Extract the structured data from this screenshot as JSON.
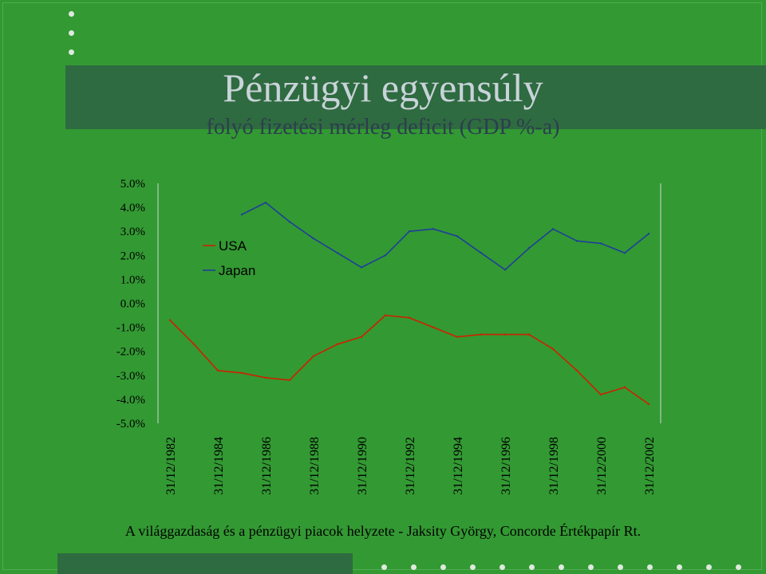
{
  "slide": {
    "title": "Pénzügyi egyensúly",
    "subtitle": "folyó fizetési mérleg deficit (GDP %-a)",
    "footer": "A világgazdaság és a pénzügyi piacok helyzete - Jaksity György, Concorde Értékpapír Rt."
  },
  "colors": {
    "background": "#339933",
    "band": "#2e6b40",
    "usa": "#cc2200",
    "japan": "#1f3f99",
    "title_text": "#c9d3d9"
  },
  "chart_data": {
    "type": "line",
    "y_tick_labels": [
      "5.0%",
      "4.0%",
      "3.0%",
      "2.0%",
      "1.0%",
      "0.0%",
      "-1.0%",
      "-2.0%",
      "-3.0%",
      "-4.0%",
      "-5.0%"
    ],
    "ylim": [
      -5.0,
      5.0
    ],
    "x_tick_labels": [
      "31/12/1982",
      "31/12/1984",
      "31/12/1986",
      "31/12/1988",
      "31/12/1990",
      "31/12/1992",
      "31/12/1994",
      "31/12/1996",
      "31/12/1998",
      "31/12/2000",
      "31/12/2002"
    ],
    "years": [
      1982,
      1983,
      1984,
      1985,
      1986,
      1987,
      1988,
      1989,
      1990,
      1991,
      1992,
      1993,
      1994,
      1995,
      1996,
      1997,
      1998,
      1999,
      2000,
      2001,
      2002
    ],
    "legend": {
      "position": "upper-left",
      "entries": [
        "USA",
        "Japan"
      ]
    },
    "grid": false,
    "series": [
      {
        "name": "USA",
        "values": [
          -0.7,
          -1.7,
          -2.8,
          -2.9,
          -3.1,
          -3.2,
          -2.2,
          -1.7,
          -1.4,
          -0.5,
          -0.6,
          -1.0,
          -1.4,
          -1.3,
          -1.3,
          -1.3,
          -1.9,
          -2.8,
          -3.8,
          -3.5,
          -4.2
        ]
      },
      {
        "name": "Japan",
        "values": [
          null,
          null,
          null,
          3.7,
          4.2,
          3.4,
          2.7,
          2.1,
          1.5,
          2.0,
          3.0,
          3.1,
          2.8,
          2.1,
          1.4,
          2.3,
          3.1,
          2.6,
          2.5,
          2.1,
          2.9
        ]
      }
    ]
  }
}
